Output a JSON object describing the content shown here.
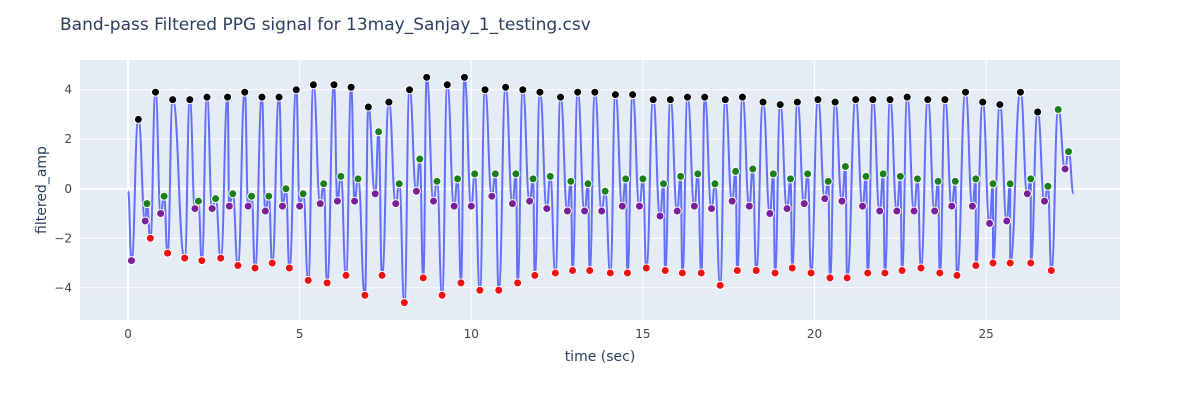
{
  "chart_data": {
    "type": "line",
    "title": "Band-pass Filtered PPG signal for 13may_Sanjay_1_testing.csv",
    "xlabel": "time (sec)",
    "ylabel": "filtered_amp",
    "xlim": [
      -1.4,
      28.9
    ],
    "ylim": [
      -5.3,
      5.2
    ],
    "x_ticks": [
      0,
      5,
      10,
      15,
      20,
      25
    ],
    "y_ticks": [
      -4,
      -2,
      0,
      2,
      4
    ],
    "grid": true,
    "legend": false,
    "colors": {
      "signal_line": "#636efa",
      "peak_black": "#000000",
      "peak_green": "#1a7f1a",
      "trough_purple": "#7a1f9a",
      "trough_red": "#ee1111",
      "plot_bg": "#e5ecf6",
      "grid": "#ffffff"
    },
    "series": [
      {
        "marker": "black",
        "x": [
          0.3,
          0.8,
          1.3,
          1.8,
          2.3,
          2.9,
          3.4,
          3.9,
          4.4,
          4.9,
          5.4,
          6.0,
          6.5,
          7.0,
          7.6,
          8.2,
          8.7,
          9.3,
          9.8,
          10.4,
          11.0,
          11.5,
          12.0,
          12.6,
          13.1,
          13.6,
          14.2,
          14.7,
          15.3,
          15.8,
          16.3,
          16.8,
          17.4,
          17.9,
          18.5,
          19.0,
          19.5,
          20.1,
          20.6,
          21.2,
          21.7,
          22.2,
          22.7,
          23.3,
          23.8,
          24.4,
          24.9,
          25.4,
          26.0,
          26.5
        ],
        "y": [
          2.8,
          3.9,
          3.6,
          3.6,
          3.7,
          3.7,
          3.9,
          3.7,
          3.7,
          4.0,
          4.2,
          4.2,
          4.1,
          3.3,
          3.5,
          4.0,
          4.5,
          4.2,
          4.5,
          4.0,
          4.1,
          4.0,
          3.9,
          3.7,
          3.9,
          3.9,
          3.8,
          3.8,
          3.6,
          3.6,
          3.7,
          3.7,
          3.6,
          3.7,
          3.5,
          3.4,
          3.5,
          3.6,
          3.5,
          3.6,
          3.6,
          3.6,
          3.7,
          3.6,
          3.6,
          3.9,
          3.5,
          3.4,
          3.9,
          3.1
        ]
      },
      {
        "marker": "green",
        "x": [
          0.55,
          1.05,
          2.05,
          2.55,
          3.05,
          3.6,
          4.1,
          4.6,
          5.1,
          5.7,
          6.2,
          6.7,
          7.3,
          7.9,
          8.5,
          9.0,
          9.6,
          10.1,
          10.7,
          11.3,
          11.8,
          12.3,
          12.9,
          13.4,
          13.9,
          14.5,
          15.0,
          15.6,
          16.1,
          16.6,
          17.1,
          17.7,
          18.2,
          18.8,
          19.3,
          19.8,
          20.4,
          20.9,
          21.5,
          22.0,
          22.5,
          23.0,
          23.6,
          24.1,
          24.7,
          25.2,
          25.7,
          26.3,
          26.8,
          27.1,
          27.4
        ],
        "y": [
          -0.6,
          -0.3,
          -0.5,
          -0.4,
          -0.2,
          -0.3,
          -0.3,
          0.0,
          -0.2,
          0.2,
          0.5,
          0.4,
          2.3,
          0.2,
          1.2,
          0.3,
          0.4,
          0.6,
          0.6,
          0.6,
          0.4,
          0.5,
          0.3,
          0.2,
          -0.1,
          0.4,
          0.4,
          0.2,
          0.5,
          0.6,
          0.2,
          0.7,
          0.8,
          0.6,
          0.4,
          0.6,
          0.3,
          0.9,
          0.5,
          0.6,
          0.5,
          0.4,
          0.3,
          0.3,
          0.4,
          0.2,
          0.2,
          0.4,
          0.1,
          3.2,
          1.5
        ]
      },
      {
        "marker": "purple",
        "x": [
          0.1,
          0.5,
          0.95,
          1.95,
          2.45,
          2.95,
          3.5,
          4.0,
          4.5,
          5.0,
          5.6,
          6.1,
          6.6,
          7.2,
          7.8,
          8.4,
          8.9,
          9.5,
          10.0,
          10.6,
          11.2,
          11.7,
          12.2,
          12.8,
          13.3,
          13.8,
          14.4,
          14.9,
          15.5,
          16.0,
          16.5,
          17.0,
          17.6,
          18.1,
          18.7,
          19.2,
          19.7,
          20.3,
          20.8,
          21.4,
          21.9,
          22.4,
          22.9,
          23.5,
          24.0,
          24.6,
          25.1,
          25.6,
          26.2,
          26.7,
          27.3
        ],
        "y": [
          -2.9,
          -1.3,
          -1.0,
          -0.8,
          -0.8,
          -0.7,
          -0.7,
          -0.9,
          -0.7,
          -0.7,
          -0.6,
          -0.5,
          -0.5,
          -0.2,
          -0.6,
          -0.1,
          -0.5,
          -0.7,
          -0.7,
          -0.3,
          -0.6,
          -0.5,
          -0.8,
          -0.9,
          -0.9,
          -0.9,
          -0.7,
          -0.7,
          -1.1,
          -0.9,
          -0.7,
          -0.8,
          -0.5,
          -0.7,
          -1.0,
          -0.8,
          -0.6,
          -0.4,
          -0.5,
          -0.7,
          -0.9,
          -0.9,
          -0.9,
          -0.9,
          -0.7,
          -0.7,
          -1.4,
          -1.3,
          -0.2,
          -0.5,
          0.8
        ]
      },
      {
        "marker": "red",
        "x": [
          0.65,
          1.15,
          1.65,
          2.15,
          2.7,
          3.2,
          3.7,
          4.2,
          4.7,
          5.25,
          5.8,
          6.35,
          6.9,
          7.4,
          8.05,
          8.6,
          9.15,
          9.7,
          10.25,
          10.8,
          11.35,
          11.85,
          12.45,
          12.95,
          13.45,
          14.05,
          14.55,
          15.1,
          15.65,
          16.15,
          16.7,
          17.25,
          17.75,
          18.3,
          18.85,
          19.35,
          19.9,
          20.45,
          20.95,
          21.55,
          22.05,
          22.55,
          23.1,
          23.65,
          24.15,
          24.7,
          25.2,
          25.7,
          26.3,
          26.9
        ],
        "y": [
          -2.0,
          -2.6,
          -2.8,
          -2.9,
          -2.8,
          -3.1,
          -3.2,
          -3.0,
          -3.2,
          -3.7,
          -3.8,
          -3.5,
          -4.3,
          -3.5,
          -4.6,
          -3.6,
          -4.3,
          -3.8,
          -4.1,
          -4.1,
          -3.8,
          -3.5,
          -3.4,
          -3.3,
          -3.3,
          -3.4,
          -3.4,
          -3.2,
          -3.3,
          -3.4,
          -3.4,
          -3.9,
          -3.3,
          -3.3,
          -3.4,
          -3.2,
          -3.4,
          -3.6,
          -3.6,
          -3.4,
          -3.4,
          -3.3,
          -3.2,
          -3.4,
          -3.5,
          -3.1,
          -3.0,
          -3.0,
          -3.0,
          -3.3
        ]
      }
    ]
  }
}
